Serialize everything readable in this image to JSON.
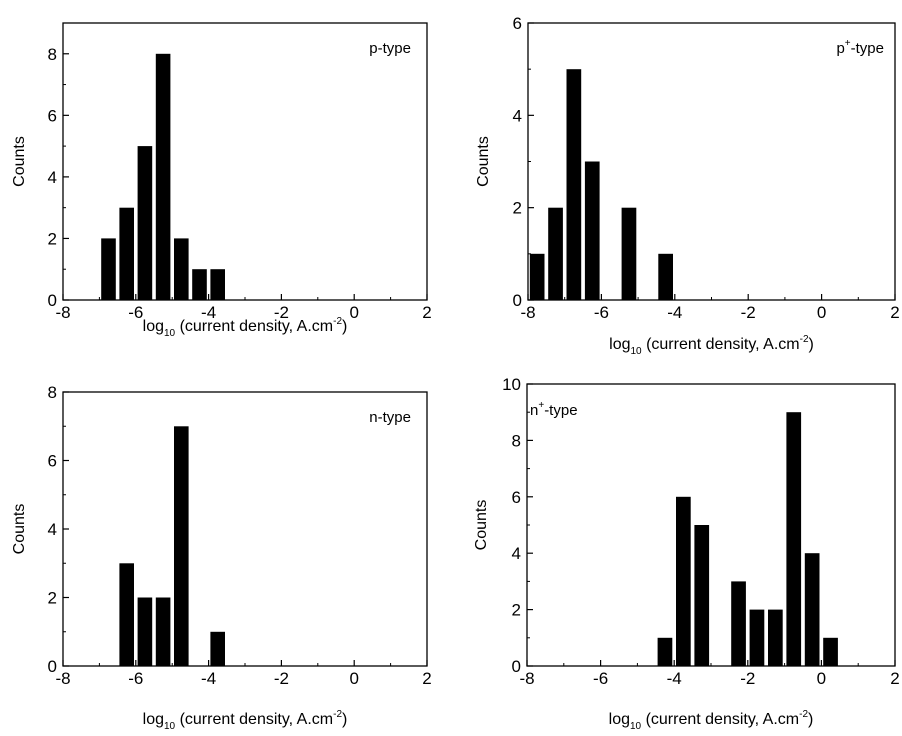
{
  "chart_data": [
    {
      "type": "bar",
      "panel_label": "p-type",
      "xlabel": "log10 (current density, A.cm-2)",
      "xlabel_parts": {
        "pre": "log",
        "sub": "10",
        "mid": " (current density, A.cm",
        "sup": "-2",
        "post": ")"
      },
      "ylabel": "Counts",
      "xlim": [
        -8,
        2
      ],
      "ylim": [
        0,
        9
      ],
      "xticks": [
        "-8",
        "-6",
        "-4",
        "-2",
        "0",
        "2"
      ],
      "yticks": [
        "0",
        "2",
        "4",
        "6",
        "8"
      ],
      "bin_width": 0.4,
      "bars": [
        {
          "x": -6.75,
          "count": 2
        },
        {
          "x": -6.25,
          "count": 3
        },
        {
          "x": -5.75,
          "count": 5
        },
        {
          "x": -5.25,
          "count": 8
        },
        {
          "x": -4.75,
          "count": 2
        },
        {
          "x": -4.25,
          "count": 1
        },
        {
          "x": -3.75,
          "count": 1
        }
      ]
    },
    {
      "type": "bar",
      "panel_label": "p+-type",
      "panel_label_parts": {
        "pre": "p",
        "sup": "+",
        "post": "-type"
      },
      "xlabel": "log10 (current density, A.cm-2)",
      "xlabel_parts": {
        "pre": "log",
        "sub": "10",
        "mid": " (current density, A.cm",
        "sup": "-2",
        "post": ")"
      },
      "ylabel": "Counts",
      "xlim": [
        -8,
        2
      ],
      "ylim": [
        0,
        6
      ],
      "xticks": [
        "-8",
        "-6",
        "-4",
        "-2",
        "0",
        "2"
      ],
      "yticks": [
        "0",
        "2",
        "4",
        "6"
      ],
      "bin_width": 0.4,
      "bars": [
        {
          "x": -7.75,
          "count": 1
        },
        {
          "x": -7.25,
          "count": 2
        },
        {
          "x": -6.75,
          "count": 5
        },
        {
          "x": -6.25,
          "count": 3
        },
        {
          "x": -5.25,
          "count": 2
        },
        {
          "x": -4.25,
          "count": 1
        }
      ]
    },
    {
      "type": "bar",
      "panel_label": "n-type",
      "xlabel": "log10 (current density, A.cm-2)",
      "xlabel_parts": {
        "pre": "log",
        "sub": "10",
        "mid": " (current density, A.cm",
        "sup": "-2",
        "post": ")"
      },
      "ylabel": "Counts",
      "xlim": [
        -8,
        2
      ],
      "ylim": [
        0,
        8
      ],
      "xticks": [
        "-8",
        "-6",
        "-4",
        "-2",
        "0",
        "2"
      ],
      "yticks": [
        "0",
        "2",
        "4",
        "6",
        "8"
      ],
      "bin_width": 0.4,
      "bars": [
        {
          "x": -6.25,
          "count": 3
        },
        {
          "x": -5.75,
          "count": 2
        },
        {
          "x": -5.25,
          "count": 2
        },
        {
          "x": -4.75,
          "count": 7
        },
        {
          "x": -3.75,
          "count": 1
        }
      ]
    },
    {
      "type": "bar",
      "panel_label": "n+-type",
      "panel_label_parts": {
        "pre": "n",
        "sup": "+",
        "post": "-type"
      },
      "xlabel": "log10 (current density, A.cm-2)",
      "xlabel_parts": {
        "pre": "log",
        "sub": "10",
        "mid": " (current density, A.cm",
        "sup": "-2",
        "post": ")"
      },
      "ylabel": "Counts",
      "xlim": [
        -8,
        2
      ],
      "ylim": [
        0,
        10
      ],
      "xticks": [
        "-8",
        "-6",
        "-4",
        "-2",
        "0",
        "2"
      ],
      "yticks": [
        "0",
        "2",
        "4",
        "6",
        "8",
        "10"
      ],
      "bin_width": 0.4,
      "bars": [
        {
          "x": -4.25,
          "count": 1
        },
        {
          "x": -3.75,
          "count": 6
        },
        {
          "x": -3.25,
          "count": 5
        },
        {
          "x": -2.25,
          "count": 3
        },
        {
          "x": -1.75,
          "count": 2
        },
        {
          "x": -1.25,
          "count": 2
        },
        {
          "x": -0.75,
          "count": 9
        },
        {
          "x": -0.25,
          "count": 4
        },
        {
          "x": 0.25,
          "count": 1
        }
      ]
    }
  ]
}
